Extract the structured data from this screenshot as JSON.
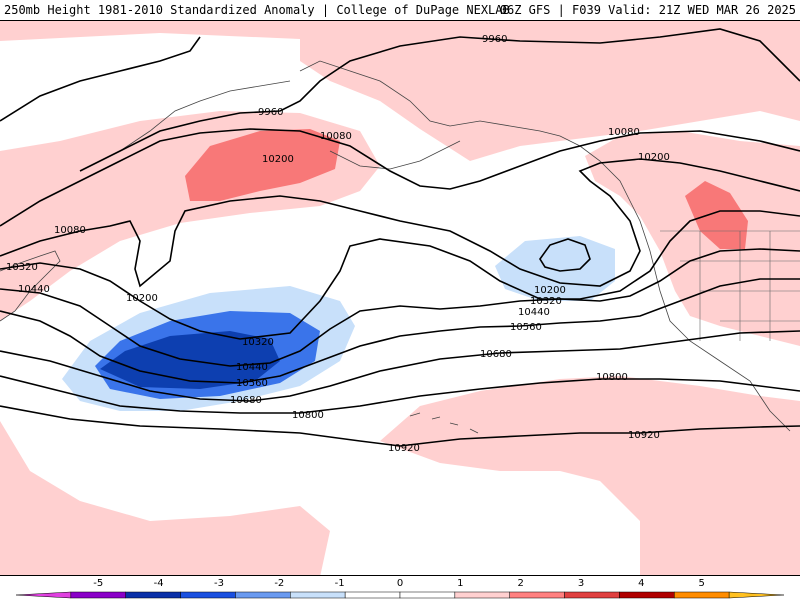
{
  "header": {
    "title_left": "250mb Height 1981-2010 Standardized Anomaly | College of DuPage NEXLAB",
    "title_right": "06Z GFS | F039 Valid: 21Z WED MAR 26 2025"
  },
  "contour_labels": {
    "c9960_a": "9960",
    "c9960_b": "9960",
    "c10080_a": "10080",
    "c10080_b": "10080",
    "c10080_c": "10080",
    "c10200_a": "10200",
    "c10200_b": "10200",
    "c10200_c": "10200",
    "c10200_d": "10200",
    "c10320_a": "10320",
    "c10320_b": "10320",
    "c10320_c": "10320",
    "c10440_a": "10440",
    "c10440_b": "10440",
    "c10440_c": "10440",
    "c10560_a": "10560",
    "c10560_b": "10560",
    "c10680_a": "10680",
    "c10680_b": "10680",
    "c10800_a": "10800",
    "c10800_b": "10800",
    "c10920_a": "10920",
    "c10920_b": "10920"
  },
  "colorbar": {
    "ticks": [
      "-5",
      "-4",
      "-3",
      "-2",
      "-1",
      "0",
      "1",
      "2",
      "3",
      "4",
      "5"
    ],
    "colors": [
      "#e040e0",
      "#8a00c8",
      "#0a30a8",
      "#1a50e0",
      "#6a9af0",
      "#c8e0fa",
      "#ffffff",
      "#ffffff",
      "#ffd0d0",
      "#ff8080",
      "#e04040",
      "#b00000",
      "#ff8c00",
      "#ffc020"
    ]
  },
  "colors": {
    "neg1": "#c8e0fa",
    "neg2": "#3a74ea",
    "neg3": "#0d3fb0",
    "pos1": "#ffd0d0",
    "pos2": "#f87878",
    "contour": "#000000"
  }
}
